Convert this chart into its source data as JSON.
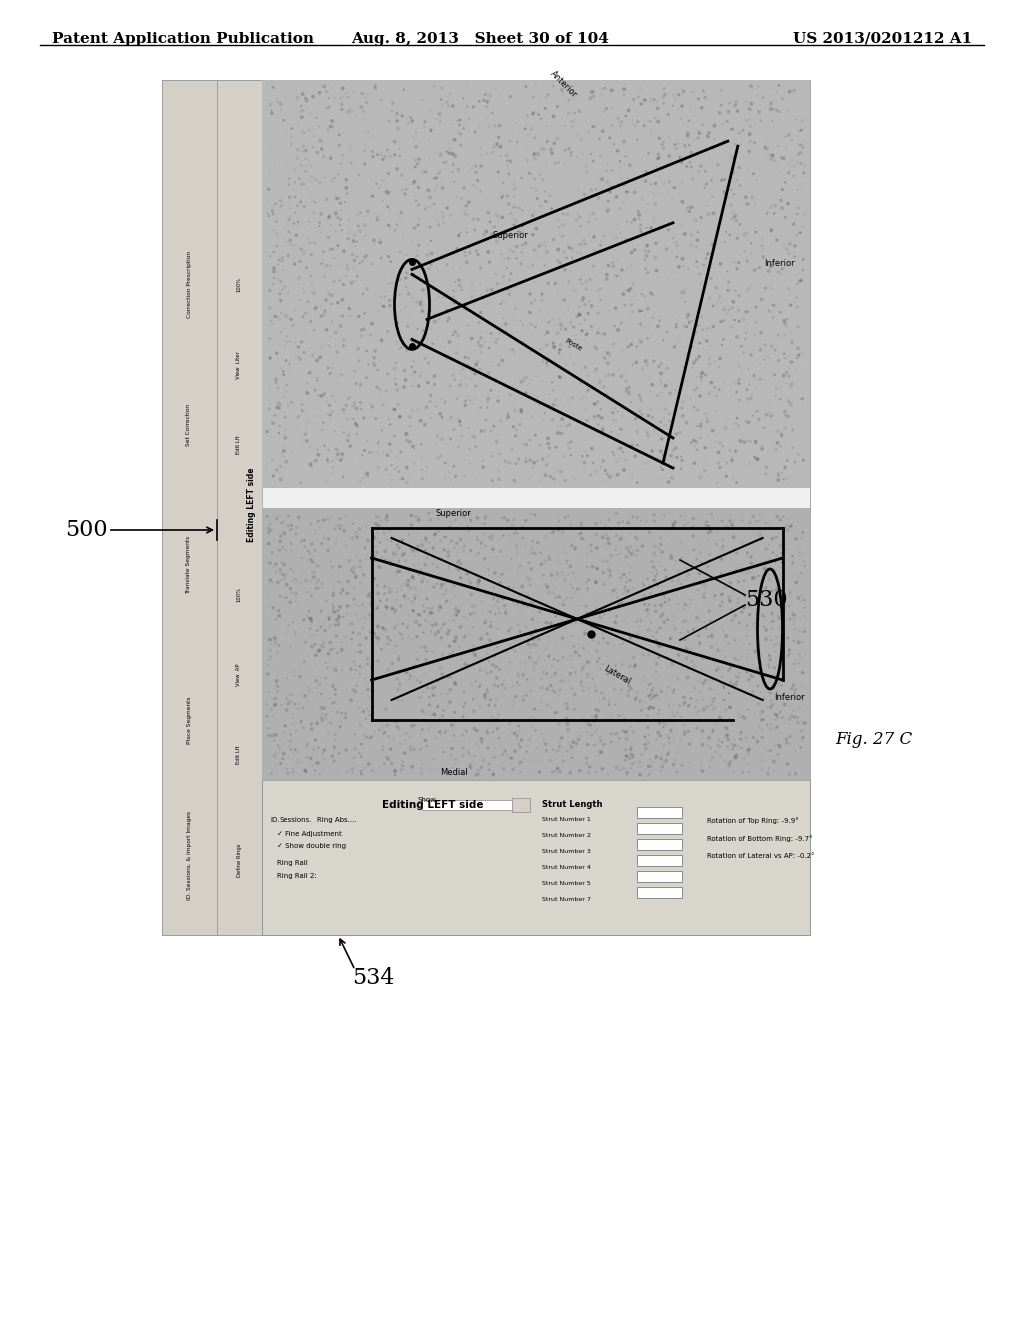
{
  "header_left": "Patent Application Publication",
  "header_mid": "Aug. 8, 2013   Sheet 30 of 104",
  "header_right": "US 2013/0201212 A1",
  "fig_label": "Fig. 27 C",
  "label_500": "500",
  "label_530": "530",
  "label_534": "534",
  "background_color": "#ffffff",
  "header_fontsize": 11,
  "content_bg": "#e0e0e0",
  "ui_bg": "#d4d0c8",
  "xray_bg_dark": "#909090",
  "xray_bg_medium": "#b0b0b0"
}
